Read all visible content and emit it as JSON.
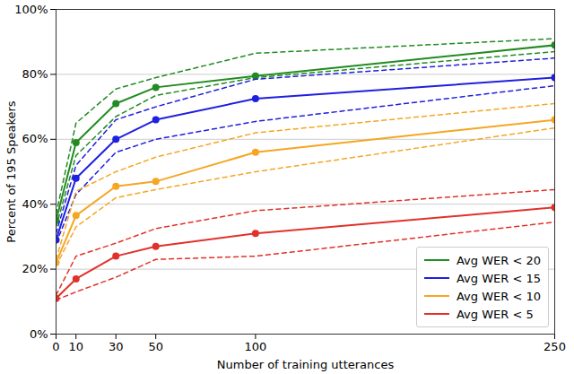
{
  "chart_data": {
    "type": "line",
    "x_label": "Number of training utterances",
    "y_label": "Percent of 195 Speakers",
    "x": [
      0,
      10,
      30,
      50,
      100,
      250
    ],
    "xlim": [
      0,
      250
    ],
    "xticks": [
      0,
      10,
      30,
      50,
      100,
      250
    ],
    "ylim": [
      0,
      100
    ],
    "yticks": [
      {
        "value": 0,
        "label": "0%"
      },
      {
        "value": 20,
        "label": "20%"
      },
      {
        "value": 40,
        "label": "40%"
      },
      {
        "value": 60,
        "label": "60%"
      },
      {
        "value": 80,
        "label": "80%"
      },
      {
        "value": 100,
        "label": "100%"
      }
    ],
    "grid": true,
    "legend": "lower right",
    "series": [
      {
        "name": "Avg WER < 20",
        "color": "#228b22",
        "marker": "circle",
        "line_style": "solid",
        "values": [
          35,
          59,
          71,
          76,
          79.5,
          89
        ],
        "lower": [
          33,
          55,
          67,
          73.5,
          79,
          87
        ],
        "upper": [
          37,
          65,
          75.5,
          79,
          86.5,
          91
        ]
      },
      {
        "name": "Avg WER < 15",
        "color": "#1f1fe0",
        "marker": "circle",
        "line_style": "solid",
        "values": [
          29,
          48,
          60,
          66,
          72.5,
          79
        ],
        "lower": [
          28,
          43,
          56,
          60,
          65.5,
          76.5
        ],
        "upper": [
          31,
          52,
          66,
          70,
          78.5,
          85
        ]
      },
      {
        "name": "Avg WER < 10",
        "color": "#f5a623",
        "marker": "circle",
        "line_style": "solid",
        "values": [
          22,
          36.5,
          45.5,
          47,
          56,
          66
        ],
        "lower": [
          21,
          33,
          42,
          44.5,
          50,
          63.5
        ],
        "upper": [
          23,
          44,
          50,
          54.5,
          62,
          71
        ]
      },
      {
        "name": "Avg WER < 5",
        "color": "#e0322a",
        "marker": "circle",
        "line_style": "solid",
        "values": [
          11,
          17,
          24,
          27,
          31,
          39
        ],
        "lower": [
          10.5,
          13,
          17.5,
          23,
          24,
          34.5
        ],
        "upper": [
          12,
          24,
          28,
          32.5,
          38,
          44.5
        ]
      }
    ]
  }
}
